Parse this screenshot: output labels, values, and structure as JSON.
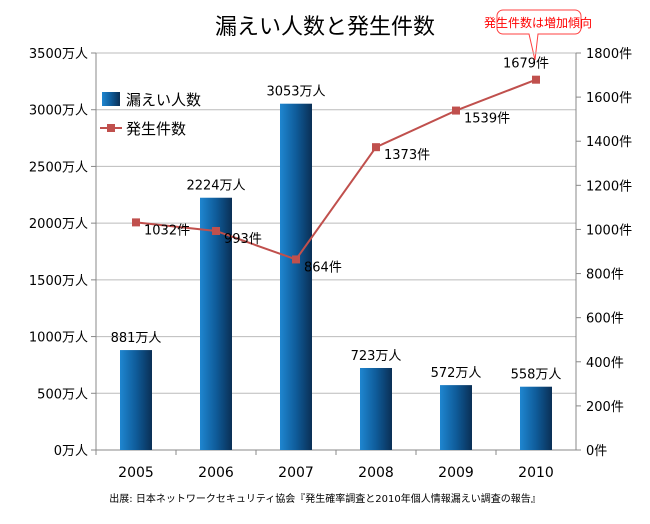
{
  "chart_data": {
    "type": "bar+line",
    "title": "漏えい人数と発生件数",
    "categories": [
      "2005",
      "2006",
      "2007",
      "2008",
      "2009",
      "2010"
    ],
    "series": [
      {
        "name": "漏えい人数",
        "type": "bar",
        "axis": "left",
        "values": [
          881,
          2224,
          3053,
          723,
          572,
          558
        ],
        "labels": [
          "881万人",
          "2224万人",
          "3053万人",
          "723万人",
          "572万人",
          "558万人"
        ],
        "color": "#1a6fb0"
      },
      {
        "name": "発生件数",
        "type": "line",
        "axis": "right",
        "values": [
          1032,
          993,
          864,
          1373,
          1539,
          1679
        ],
        "labels": [
          "1032件",
          "993件",
          "864件",
          "1373件",
          "1539件",
          "1679件"
        ],
        "color": "#c0504d"
      }
    ],
    "y_left": {
      "range": [
        0,
        3500
      ],
      "ticks": [
        "0万人",
        "500万人",
        "1000万人",
        "1500万人",
        "2000万人",
        "2500万人",
        "3000万人",
        "3500万人"
      ]
    },
    "y_right": {
      "range": [
        0,
        1800
      ],
      "ticks": [
        "0件",
        "200件",
        "400件",
        "600件",
        "800件",
        "1000件",
        "1200件",
        "1400件",
        "1600件",
        "1800件"
      ]
    },
    "grid": true,
    "legend_placement": "top-left",
    "annotation": "発生件数は増加傾向",
    "annotation_color": "#ff0000",
    "source": "出展: 日本ネットワークセキュリティ協会『発生確率調査と2010年個人情報漏えい調査の報告』"
  }
}
